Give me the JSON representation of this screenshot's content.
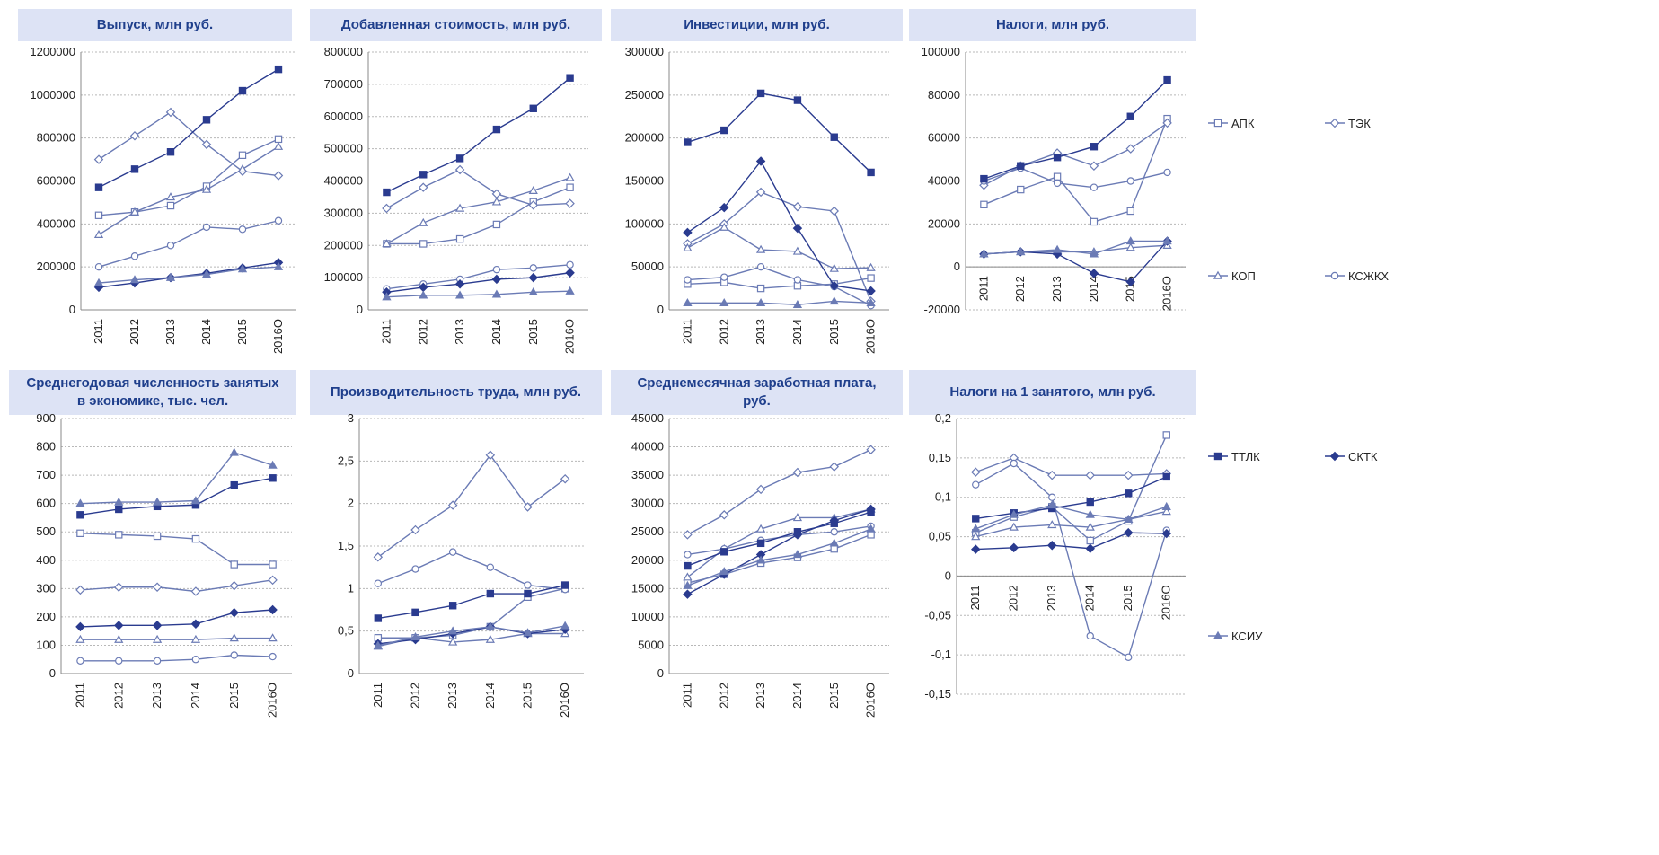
{
  "colors": {
    "dark": "#2a3b8f",
    "light": "#6b7bb5",
    "title_bg": "#dde3f5",
    "title_text": "#1f3f8c",
    "grid": "#b8b8b8"
  },
  "legend": [
    {
      "name": "АПК",
      "marker": "square-open"
    },
    {
      "name": "ТЭК",
      "marker": "diamond-open"
    },
    {
      "name": "КОП",
      "marker": "triangle-open"
    },
    {
      "name": "КСЖКХ",
      "marker": "circle-open"
    },
    {
      "name": "ТТЛК",
      "marker": "square-filled"
    },
    {
      "name": "СКТК",
      "marker": "diamond-filled"
    },
    {
      "name": "КСИУ",
      "marker": "triangle-filled"
    }
  ],
  "chart_data": [
    {
      "type": "line",
      "title": "Выпуск, млн руб.",
      "categories": [
        "2011",
        "2012",
        "2013",
        "2014",
        "2015",
        "2016О"
      ],
      "ylim": [
        0,
        1200000
      ],
      "yticks": [
        "0",
        "200000",
        "400000",
        "600000",
        "800000",
        "1000000",
        "1200000"
      ],
      "series": [
        {
          "name": "АПК",
          "values": [
            440000,
            455000,
            485000,
            575000,
            720000,
            795000
          ]
        },
        {
          "name": "ТЭК",
          "values": [
            700000,
            810000,
            920000,
            770000,
            645000,
            625000
          ]
        },
        {
          "name": "КОП",
          "values": [
            350000,
            455000,
            525000,
            560000,
            655000,
            760000
          ]
        },
        {
          "name": "КСЖКХ",
          "values": [
            200000,
            250000,
            300000,
            385000,
            375000,
            415000
          ]
        },
        {
          "name": "ТТЛК",
          "values": [
            570000,
            655000,
            735000,
            885000,
            1020000,
            1120000
          ]
        },
        {
          "name": "СКТК",
          "values": [
            105000,
            125000,
            150000,
            170000,
            195000,
            220000
          ]
        },
        {
          "name": "КСИУ",
          "values": [
            125000,
            140000,
            150000,
            165000,
            190000,
            200000
          ]
        }
      ]
    },
    {
      "type": "line",
      "title": "Добавленная стоимость, млн руб.",
      "categories": [
        "2011",
        "2012",
        "2013",
        "2014",
        "2015",
        "2016О"
      ],
      "ylim": [
        0,
        800000
      ],
      "yticks": [
        "0",
        "100000",
        "200000",
        "300000",
        "400000",
        "500000",
        "600000",
        "700000",
        "800000"
      ],
      "series": [
        {
          "name": "АПК",
          "values": [
            205000,
            205000,
            220000,
            265000,
            335000,
            380000
          ]
        },
        {
          "name": "ТЭК",
          "values": [
            315000,
            380000,
            435000,
            360000,
            325000,
            330000
          ]
        },
        {
          "name": "КОП",
          "values": [
            205000,
            270000,
            315000,
            335000,
            370000,
            410000
          ]
        },
        {
          "name": "КСЖКХ",
          "values": [
            65000,
            80000,
            95000,
            125000,
            130000,
            140000
          ]
        },
        {
          "name": "ТТЛК",
          "values": [
            365000,
            420000,
            470000,
            560000,
            625000,
            720000
          ]
        },
        {
          "name": "СКТК",
          "values": [
            55000,
            70000,
            80000,
            95000,
            100000,
            115000
          ]
        },
        {
          "name": "КСИУ",
          "values": [
            40000,
            45000,
            45000,
            48000,
            55000,
            58000
          ]
        }
      ]
    },
    {
      "type": "line",
      "title": "Инвестиции, млн руб.",
      "categories": [
        "2011",
        "2012",
        "2013",
        "2014",
        "2015",
        "2016О"
      ],
      "ylim": [
        0,
        300000
      ],
      "yticks": [
        "0",
        "50000",
        "100000",
        "150000",
        "200000",
        "250000",
        "300000"
      ],
      "series": [
        {
          "name": "АПК",
          "values": [
            30000,
            32000,
            25000,
            28000,
            30000,
            37000
          ]
        },
        {
          "name": "ТЭК",
          "values": [
            77000,
            100000,
            137000,
            120000,
            115000,
            10000
          ]
        },
        {
          "name": "КОП",
          "values": [
            72000,
            96000,
            70000,
            68000,
            48000,
            49000
          ]
        },
        {
          "name": "КСЖКХ",
          "values": [
            35000,
            38000,
            50000,
            35000,
            27000,
            5000
          ]
        },
        {
          "name": "ТТЛК",
          "values": [
            195000,
            209000,
            252000,
            244000,
            201000,
            160000
          ]
        },
        {
          "name": "СКТК",
          "values": [
            90000,
            119000,
            173000,
            95000,
            28000,
            22000
          ]
        },
        {
          "name": "КСИУ",
          "values": [
            8000,
            8000,
            8000,
            6000,
            10000,
            8000
          ]
        }
      ]
    },
    {
      "type": "line",
      "title": "Налоги, млн руб.",
      "categories": [
        "2011",
        "2012",
        "2013",
        "2014",
        "2015",
        "2016О"
      ],
      "ylim": [
        -20000,
        100000
      ],
      "yticks": [
        "-20000",
        "0",
        "20000",
        "40000",
        "60000",
        "80000",
        "100000"
      ],
      "series": [
        {
          "name": "АПК",
          "values": [
            29000,
            36000,
            42000,
            21000,
            26000,
            69000
          ]
        },
        {
          "name": "ТЭК",
          "values": [
            38000,
            47000,
            53000,
            47000,
            55000,
            67000
          ]
        },
        {
          "name": "КОП",
          "values": [
            6000,
            7000,
            7000,
            7000,
            9000,
            10000
          ]
        },
        {
          "name": "КСЖКХ",
          "values": [
            40000,
            46000,
            39000,
            37000,
            40000,
            44000
          ]
        },
        {
          "name": "ТТЛК",
          "values": [
            41000,
            47000,
            51000,
            56000,
            70000,
            87000
          ]
        },
        {
          "name": "СКТК",
          "values": [
            6000,
            7000,
            6000,
            -3000,
            -7000,
            12000
          ]
        },
        {
          "name": "КСИУ",
          "values": [
            6000,
            7000,
            8000,
            6000,
            12000,
            12000
          ]
        }
      ]
    },
    {
      "type": "line",
      "title": "Среднегодовая численность занятых\nв экономике, тыс. чел.",
      "categories": [
        "2011",
        "2012",
        "2013",
        "2014",
        "2015",
        "2016О"
      ],
      "ylim": [
        0,
        900
      ],
      "yticks": [
        "0",
        "100",
        "200",
        "300",
        "400",
        "500",
        "600",
        "700",
        "800",
        "900"
      ],
      "series": [
        {
          "name": "АПК",
          "values": [
            495,
            490,
            485,
            475,
            385,
            385
          ]
        },
        {
          "name": "ТЭК",
          "values": [
            295,
            305,
            305,
            290,
            310,
            330
          ]
        },
        {
          "name": "КОП",
          "values": [
            120,
            120,
            120,
            120,
            125,
            125
          ]
        },
        {
          "name": "КСЖКХ",
          "values": [
            45,
            45,
            45,
            50,
            65,
            60
          ]
        },
        {
          "name": "ТТЛК",
          "values": [
            560,
            580,
            590,
            595,
            665,
            690
          ]
        },
        {
          "name": "СКТК",
          "values": [
            165,
            170,
            170,
            175,
            215,
            225
          ]
        },
        {
          "name": "КСИУ",
          "values": [
            600,
            605,
            605,
            610,
            780,
            735
          ]
        }
      ]
    },
    {
      "type": "line",
      "title": "Производительность труда, млн руб.",
      "categories": [
        "2011",
        "2012",
        "2013",
        "2014",
        "2015",
        "2016О"
      ],
      "ylim": [
        0,
        3
      ],
      "yticks": [
        "0",
        "0,5",
        "1",
        "1,5",
        "2",
        "2,5",
        "3"
      ],
      "series": [
        {
          "name": "АПК",
          "values": [
            0.42,
            0.42,
            0.45,
            0.55,
            0.9,
            1.0
          ]
        },
        {
          "name": "ТЭК",
          "values": [
            1.37,
            1.69,
            1.98,
            2.57,
            1.96,
            2.29
          ]
        },
        {
          "name": "КОП",
          "values": [
            0.32,
            0.42,
            0.37,
            0.4,
            0.47,
            0.47
          ]
        },
        {
          "name": "КСЖКХ",
          "values": [
            1.06,
            1.23,
            1.43,
            1.25,
            1.04,
            0.99
          ]
        },
        {
          "name": "ТТЛК",
          "values": [
            0.65,
            0.72,
            0.8,
            0.94,
            0.94,
            1.04
          ]
        },
        {
          "name": "СКТК",
          "values": [
            0.35,
            0.4,
            0.47,
            0.55,
            0.47,
            0.52
          ]
        },
        {
          "name": "КСИУ",
          "values": [
            0.33,
            0.43,
            0.5,
            0.55,
            0.48,
            0.56
          ]
        }
      ]
    },
    {
      "type": "line",
      "title": "Среднемесячная заработная плата,\nруб.",
      "categories": [
        "2011",
        "2012",
        "2013",
        "2014",
        "2015",
        "2016О"
      ],
      "ylim": [
        0,
        45000
      ],
      "yticks": [
        "0",
        "5000",
        "10000",
        "15000",
        "20000",
        "25000",
        "30000",
        "35000",
        "40000",
        "45000"
      ],
      "series": [
        {
          "name": "АПК",
          "values": [
            16000,
            17500,
            19500,
            20500,
            22000,
            24500
          ]
        },
        {
          "name": "ТЭК",
          "values": [
            24500,
            28000,
            32500,
            35500,
            36500,
            39500
          ]
        },
        {
          "name": "КОП",
          "values": [
            17000,
            22000,
            25500,
            27500,
            27500,
            29000
          ]
        },
        {
          "name": "КСЖКХ",
          "values": [
            21000,
            22000,
            23500,
            24500,
            25000,
            26000
          ]
        },
        {
          "name": "ТТЛК",
          "values": [
            19000,
            21500,
            23000,
            25000,
            26500,
            28500
          ]
        },
        {
          "name": "СКТК",
          "values": [
            14000,
            17500,
            21000,
            24500,
            27000,
            29000
          ]
        },
        {
          "name": "КСИУ",
          "values": [
            15500,
            18000,
            20000,
            21000,
            23000,
            25500
          ]
        }
      ]
    },
    {
      "type": "line",
      "title": "Налоги на 1 занятого, млн руб.",
      "categories": [
        "2011",
        "2012",
        "2013",
        "2014",
        "2015",
        "2016О"
      ],
      "ylim": [
        -0.15,
        0.2
      ],
      "yticks": [
        "-0,15",
        "-0,1",
        "-0,05",
        "0",
        "0,05",
        "0,1",
        "0,15",
        "0,2"
      ],
      "series": [
        {
          "name": "АПК",
          "values": [
            0.055,
            0.075,
            0.088,
            0.045,
            0.07,
            0.179
          ]
        },
        {
          "name": "ТЭК",
          "values": [
            0.132,
            0.15,
            0.128,
            0.128,
            0.128,
            0.13
          ]
        },
        {
          "name": "КОП",
          "values": [
            0.05,
            0.062,
            0.065,
            0.062,
            0.072,
            0.082
          ]
        },
        {
          "name": "КСЖКХ",
          "values": [
            0.116,
            0.143,
            0.1,
            -0.076,
            -0.103,
            0.058
          ]
        },
        {
          "name": "ТТЛК",
          "values": [
            0.073,
            0.08,
            0.086,
            0.094,
            0.105,
            0.126
          ]
        },
        {
          "name": "СКТК",
          "values": [
            0.034,
            0.036,
            0.039,
            0.035,
            0.055,
            0.054
          ]
        },
        {
          "name": "КСИУ",
          "values": [
            0.06,
            0.078,
            0.09,
            0.078,
            0.072,
            0.088
          ]
        }
      ]
    }
  ]
}
